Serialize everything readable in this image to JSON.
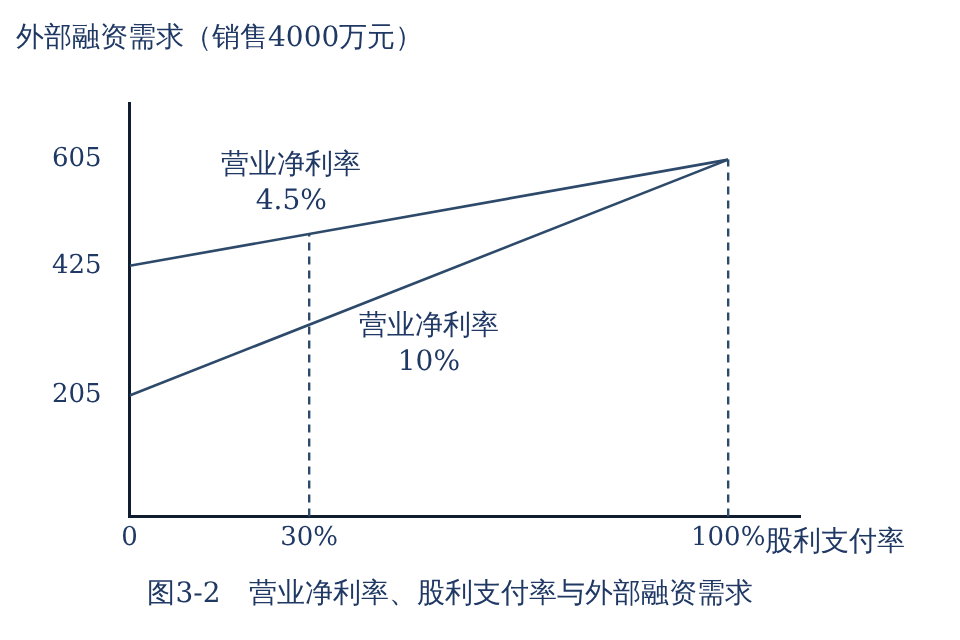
{
  "chart_data": {
    "type": "line",
    "title": "图3-2　营业净利率、股利支付率与外部融资需求",
    "xlabel": "股利支付率",
    "ylabel": "外部融资需求（销售4000万元）",
    "x": [
      0,
      100
    ],
    "series": [
      {
        "name": "营业净利率 4.5%",
        "color": "#2e4a6b",
        "values": [
          425,
          605
        ]
      },
      {
        "name": "营业净利率 10%",
        "color": "#2e4a6b",
        "values": [
          205,
          605
        ]
      }
    ],
    "xlim": [
      0,
      112
    ],
    "xticks": [
      0,
      {
        "value": 30,
        "label": "30%"
      },
      {
        "value": 100,
        "label": "100%"
      }
    ],
    "ylim": [
      0,
      700
    ],
    "yticks": [
      205,
      425,
      605
    ],
    "ref_lines": [
      {
        "axis": "x",
        "value": 30,
        "line_style": "dashed",
        "color": "#2e4a6b"
      },
      {
        "axis": "x",
        "value": 100,
        "line_style": "dashed",
        "color": "#2e4a6b"
      }
    ],
    "grid": false,
    "legend": false,
    "marker": "none",
    "line_style": "solid"
  }
}
